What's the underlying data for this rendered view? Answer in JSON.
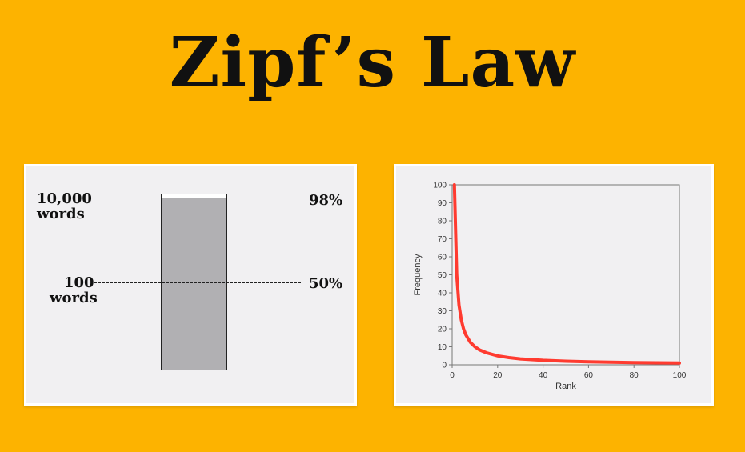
{
  "title": "Zipf’s Law",
  "left_diagram": {
    "top_label_line1": "10,000",
    "top_label_line2": "words",
    "top_percent": "98%",
    "mid_label_line1": "100",
    "mid_label_line2": "words",
    "mid_percent": "50%",
    "coverage_top": 0.98,
    "coverage_mid": 0.5,
    "colors": {
      "bar_fill": "#b1b0b3",
      "bar_empty": "#ffffff"
    }
  },
  "chart_data": {
    "type": "line",
    "xlabel": "Rank",
    "ylabel": "Frequency",
    "xlim": [
      0,
      100
    ],
    "ylim": [
      0,
      100
    ],
    "xticks": [
      0,
      20,
      40,
      60,
      80,
      100
    ],
    "yticks": [
      0,
      10,
      20,
      30,
      40,
      50,
      60,
      70,
      80,
      90,
      100
    ],
    "grid": false,
    "series": [
      {
        "color": "#ff3b30",
        "x": [
          1,
          2,
          3,
          4,
          5,
          6,
          8,
          10,
          12,
          15,
          20,
          25,
          30,
          40,
          50,
          60,
          70,
          80,
          90,
          100
        ],
        "y": [
          100,
          50,
          33.3,
          25,
          20,
          16.7,
          12.5,
          10,
          8.3,
          6.7,
          5,
          4,
          3.3,
          2.5,
          2,
          1.7,
          1.4,
          1.25,
          1.1,
          1
        ]
      }
    ]
  }
}
